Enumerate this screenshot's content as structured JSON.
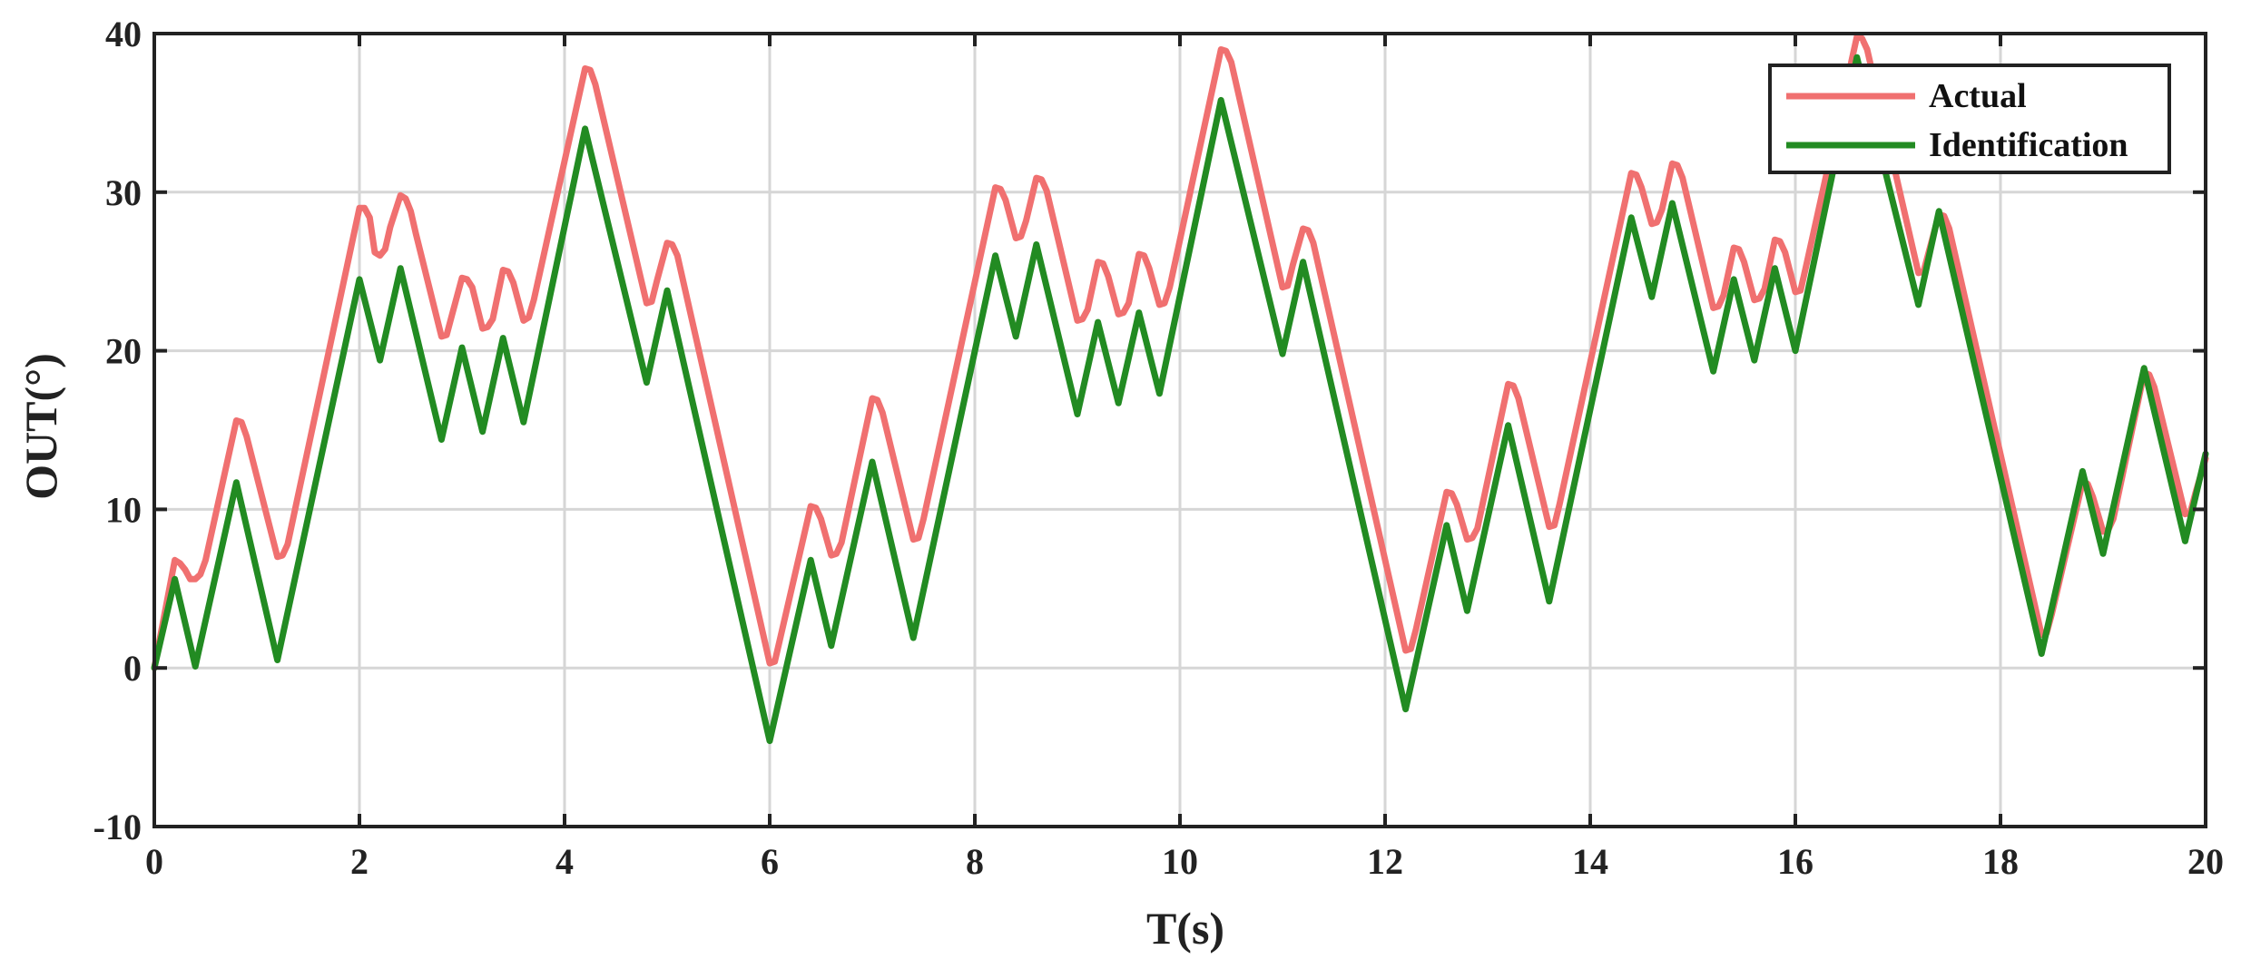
{
  "chart_data": {
    "type": "line",
    "title": "",
    "xlabel": "T(s)",
    "ylabel": "OUT(°)",
    "xlim": [
      0,
      20
    ],
    "ylim": [
      -10,
      40
    ],
    "xticks": [
      0,
      2,
      4,
      6,
      8,
      10,
      12,
      14,
      16,
      18,
      20
    ],
    "yticks": [
      -10,
      0,
      10,
      20,
      30,
      40
    ],
    "xtick_labels": [
      "0",
      "2",
      "4",
      "6",
      "8",
      "10",
      "12",
      "14",
      "16",
      "18",
      "20"
    ],
    "ytick_labels": [
      "-10",
      "0",
      "10",
      "20",
      "30",
      "40"
    ],
    "grid": true,
    "legend_position": "top-right",
    "series": [
      {
        "name": "Actual",
        "color": "#F07070",
        "x": [
          0,
          0.2,
          0.25,
          0.3,
          0.35,
          0.4,
          0.45,
          0.5,
          0.8,
          0.85,
          0.9,
          1.2,
          1.25,
          1.3,
          2.0,
          2.05,
          2.1,
          2.15,
          2.2,
          2.25,
          2.3,
          2.4,
          2.45,
          2.5,
          2.55,
          2.8,
          2.85,
          2.9,
          3.0,
          3.05,
          3.1,
          3.2,
          3.25,
          3.3,
          3.4,
          3.45,
          3.5,
          3.6,
          3.65,
          3.7,
          4.2,
          4.25,
          4.3,
          4.8,
          4.85,
          4.9,
          5.0,
          5.05,
          5.1,
          6.0,
          6.05,
          6.1,
          6.4,
          6.45,
          6.5,
          6.6,
          6.65,
          6.7,
          7.0,
          7.05,
          7.1,
          7.4,
          7.45,
          7.5,
          8.2,
          8.25,
          8.3,
          8.4,
          8.45,
          8.5,
          8.6,
          8.65,
          8.7,
          9.0,
          9.05,
          9.1,
          9.2,
          9.25,
          9.3,
          9.4,
          9.45,
          9.5,
          9.6,
          9.65,
          9.7,
          9.8,
          9.85,
          9.9,
          10.4,
          10.45,
          10.5,
          11.0,
          11.05,
          11.1,
          11.2,
          11.25,
          11.3,
          12.2,
          12.25,
          12.3,
          12.6,
          12.65,
          12.7,
          12.8,
          12.85,
          12.9,
          13.2,
          13.25,
          13.3,
          13.6,
          13.65,
          13.7,
          14.4,
          14.45,
          14.5,
          14.6,
          14.65,
          14.7,
          14.8,
          14.85,
          14.9,
          15.2,
          15.25,
          15.3,
          15.4,
          15.45,
          15.5,
          15.6,
          15.65,
          15.7,
          15.8,
          15.85,
          15.9,
          16.0,
          16.05,
          16.1,
          16.6,
          16.65,
          16.7,
          17.2,
          17.25,
          17.3,
          17.4,
          17.45,
          17.5,
          18.4,
          18.45,
          18.5,
          18.8,
          18.85,
          18.9,
          19.0,
          19.05,
          19.1,
          19.4,
          19.45,
          19.5,
          19.8,
          19.85,
          19.9,
          20.0
        ],
        "y": [
          0,
          6.8,
          6.6,
          6.2,
          5.6,
          5.6,
          5.9,
          6.8,
          15.6,
          15.5,
          14.6,
          7.0,
          7.1,
          7.8,
          29.0,
          29.0,
          28.4,
          26.2,
          26.0,
          26.4,
          27.8,
          29.8,
          29.6,
          28.8,
          27.4,
          20.9,
          21.0,
          22.2,
          24.6,
          24.5,
          24.0,
          21.4,
          21.5,
          22.0,
          25.1,
          25.0,
          24.3,
          21.9,
          22.1,
          23.2,
          37.8,
          37.7,
          36.8,
          23.0,
          23.1,
          24.4,
          26.8,
          26.7,
          26.0,
          0.3,
          0.4,
          1.8,
          10.2,
          10.1,
          9.4,
          7.1,
          7.2,
          7.9,
          17.0,
          16.9,
          16.1,
          8.1,
          8.2,
          9.4,
          30.3,
          30.2,
          29.5,
          27.1,
          27.2,
          28.2,
          30.9,
          30.8,
          30.1,
          21.9,
          22.0,
          22.6,
          25.6,
          25.5,
          24.7,
          22.3,
          22.4,
          23.0,
          26.1,
          26.0,
          25.2,
          22.9,
          23.0,
          24.0,
          39.0,
          38.9,
          38.2,
          24.0,
          24.1,
          25.4,
          27.7,
          27.6,
          26.8,
          1.1,
          1.2,
          2.4,
          11.1,
          11.0,
          10.3,
          8.1,
          8.2,
          8.8,
          17.9,
          17.8,
          17.0,
          8.9,
          9.0,
          10.3,
          31.2,
          31.1,
          30.3,
          28.0,
          28.1,
          28.9,
          31.8,
          31.7,
          30.9,
          22.7,
          22.8,
          23.5,
          26.5,
          26.4,
          25.6,
          23.2,
          23.3,
          23.9,
          27.0,
          26.9,
          26.2,
          23.7,
          23.8,
          25.2,
          39.8,
          39.7,
          39.0,
          24.9,
          25.0,
          26.2,
          28.6,
          28.5,
          27.7,
          2.1,
          2.2,
          3.4,
          11.7,
          11.6,
          10.8,
          8.6,
          8.7,
          9.4,
          18.6,
          18.5,
          17.7,
          9.7,
          9.8,
          11.0,
          13.2
        ]
      },
      {
        "name": "Identification",
        "color": "#228B22",
        "x": [
          0,
          0.2,
          0.4,
          0.8,
          1.2,
          2.0,
          2.2,
          2.4,
          2.8,
          3.0,
          3.2,
          3.4,
          3.6,
          4.2,
          4.8,
          5.0,
          6.0,
          6.4,
          6.6,
          7.0,
          7.4,
          8.2,
          8.4,
          8.6,
          9.0,
          9.2,
          9.4,
          9.6,
          9.8,
          10.4,
          11.0,
          11.2,
          12.2,
          12.6,
          12.8,
          13.2,
          13.6,
          14.4,
          14.6,
          14.8,
          15.2,
          15.4,
          15.6,
          15.8,
          16.0,
          16.6,
          17.2,
          17.4,
          18.4,
          18.8,
          19.0,
          19.4,
          19.8,
          20.0
        ],
        "y": [
          0,
          5.6,
          0.1,
          11.7,
          0.5,
          24.5,
          19.4,
          25.2,
          14.4,
          20.2,
          14.9,
          20.8,
          15.5,
          34.0,
          18.0,
          23.8,
          -4.6,
          6.8,
          1.4,
          13.0,
          1.9,
          26.0,
          20.9,
          26.7,
          16.0,
          21.8,
          16.7,
          22.4,
          17.3,
          35.8,
          19.8,
          25.6,
          -2.6,
          9.0,
          3.6,
          15.3,
          4.2,
          28.4,
          23.4,
          29.3,
          18.7,
          24.5,
          19.4,
          25.2,
          20.0,
          38.5,
          22.9,
          28.8,
          0.9,
          12.4,
          7.2,
          18.9,
          8.0,
          13.5
        ]
      }
    ]
  }
}
